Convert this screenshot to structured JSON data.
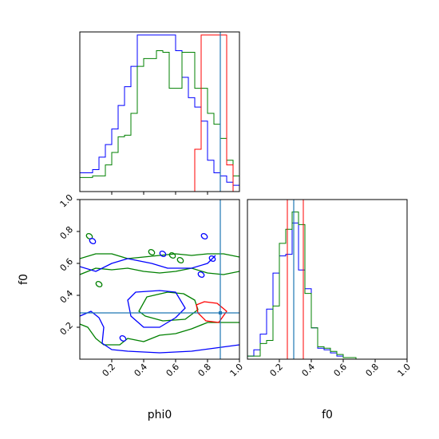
{
  "colors": {
    "blue": "#0000ff",
    "green": "#008000",
    "red": "#ff0000",
    "truth": "#1f77b4"
  },
  "chart_data": [
    {
      "type": "histogram",
      "panel": "phi0-marginal",
      "xlim": [
        0,
        1
      ],
      "bin_edges": [
        0.0,
        0.04,
        0.08,
        0.12,
        0.16,
        0.2,
        0.24,
        0.28,
        0.32,
        0.36,
        0.4,
        0.44,
        0.48,
        0.52,
        0.56,
        0.6,
        0.64,
        0.68,
        0.72,
        0.76,
        0.8,
        0.84,
        0.88,
        0.92,
        0.96,
        1.0
      ],
      "series": [
        {
          "color": "blue",
          "counts": [
            0.12,
            0.12,
            0.14,
            0.22,
            0.3,
            0.4,
            0.55,
            0.67,
            0.8,
            1.0,
            1.0,
            1.0,
            1.0,
            1.0,
            1.0,
            0.9,
            0.73,
            0.6,
            0.54,
            0.45,
            0.2,
            0.12,
            0.1,
            0.06,
            0.04
          ]
        },
        {
          "color": "green",
          "counts": [
            0.0,
            0.0,
            0.0,
            0.0,
            0.0,
            0.0,
            0.0,
            0.0,
            0.0,
            0.0,
            0.0,
            0.0,
            0.0,
            0.0,
            0.0,
            0.0,
            0.0,
            0.0,
            0.0,
            0.0,
            0.0,
            0.0,
            0.0,
            0.0,
            0.0
          ]
        },
        {
          "color": "red",
          "counts": [
            0.0,
            0.0,
            0.0,
            0.0,
            0.0,
            0.0,
            0.0,
            0.0,
            0.0,
            0.0,
            0.0,
            0.0,
            0.0,
            0.0,
            0.0,
            0.0,
            0.0,
            0.0,
            0.0,
            0.0,
            0.0,
            0.0,
            0.0,
            0.0,
            0.0
          ]
        }
      ],
      "green_counts": [
        0.09,
        0.09,
        0.1,
        0.1,
        0.17,
        0.25,
        0.35,
        0.36,
        0.5,
        0.8,
        0.85,
        0.85,
        0.9,
        0.89,
        0.66,
        0.66,
        0.89,
        0.89,
        0.66,
        0.66,
        0.5,
        0.43,
        0.34,
        0.2,
        0.1
      ],
      "red_counts": [
        0.0,
        0.0,
        0.0,
        0.0,
        0.0,
        0.0,
        0.0,
        0.0,
        0.0,
        0.0,
        0.0,
        0.0,
        0.0,
        0.0,
        0.0,
        0.0,
        0.0,
        0.0,
        0.27,
        1.0,
        1.0,
        1.0,
        1.0,
        0.17,
        0.0
      ],
      "truth_x": 0.88
    },
    {
      "type": "contour",
      "panel": "phi0-f0-joint",
      "xlabel": "phi0",
      "ylabel": "f0",
      "xlim": [
        0,
        1
      ],
      "ylim": [
        0,
        1
      ],
      "x_ticks": [
        "0.2",
        "0.4",
        "0.6",
        "0.8",
        "1.0"
      ],
      "y_ticks": [
        "0.2",
        "0.4",
        "0.6",
        "0.8",
        "1.0"
      ],
      "truth": [
        0.88,
        0.29
      ],
      "contours": [
        {
          "color": "green",
          "points": [
            [
              0.0,
              0.63
            ],
            [
              0.1,
              0.66
            ],
            [
              0.2,
              0.66
            ],
            [
              0.3,
              0.63
            ],
            [
              0.4,
              0.64
            ],
            [
              0.5,
              0.65
            ],
            [
              0.6,
              0.66
            ],
            [
              0.7,
              0.65
            ],
            [
              0.8,
              0.66
            ],
            [
              0.9,
              0.66
            ],
            [
              1.0,
              0.64
            ]
          ]
        },
        {
          "color": "green",
          "points": [
            [
              0.0,
              0.53
            ],
            [
              0.1,
              0.57
            ],
            [
              0.2,
              0.56
            ],
            [
              0.3,
              0.57
            ],
            [
              0.4,
              0.55
            ],
            [
              0.5,
              0.54
            ],
            [
              0.6,
              0.55
            ],
            [
              0.7,
              0.57
            ],
            [
              0.8,
              0.54
            ],
            [
              0.9,
              0.53
            ],
            [
              1.0,
              0.55
            ]
          ]
        },
        {
          "color": "green",
          "points": [
            [
              0.0,
              0.22
            ],
            [
              0.05,
              0.2
            ],
            [
              0.1,
              0.13
            ],
            [
              0.15,
              0.09
            ],
            [
              0.25,
              0.09
            ],
            [
              0.3,
              0.13
            ],
            [
              0.4,
              0.11
            ],
            [
              0.5,
              0.15
            ],
            [
              0.6,
              0.16
            ],
            [
              0.7,
              0.19
            ],
            [
              0.8,
              0.23
            ],
            [
              0.9,
              0.23
            ],
            [
              1.0,
              0.23
            ]
          ]
        },
        {
          "color": "green",
          "closed": true,
          "points": [
            [
              0.37,
              0.3
            ],
            [
              0.42,
              0.39
            ],
            [
              0.55,
              0.42
            ],
            [
              0.65,
              0.41
            ],
            [
              0.72,
              0.37
            ],
            [
              0.74,
              0.31
            ],
            [
              0.66,
              0.25
            ],
            [
              0.52,
              0.24
            ],
            [
              0.41,
              0.27
            ]
          ]
        },
        {
          "color": "blue",
          "points": [
            [
              0.0,
              0.58
            ],
            [
              0.1,
              0.55
            ],
            [
              0.2,
              0.6
            ],
            [
              0.3,
              0.63
            ],
            [
              0.35,
              0.62
            ],
            [
              0.45,
              0.6
            ],
            [
              0.55,
              0.57
            ],
            [
              0.65,
              0.57
            ],
            [
              0.7,
              0.57
            ],
            [
              0.8,
              0.6
            ],
            [
              0.85,
              0.65
            ]
          ]
        },
        {
          "color": "blue",
          "closed": true,
          "points": [
            [
              0.3,
              0.37
            ],
            [
              0.35,
              0.42
            ],
            [
              0.5,
              0.43
            ],
            [
              0.6,
              0.42
            ],
            [
              0.66,
              0.32
            ],
            [
              0.6,
              0.26
            ],
            [
              0.5,
              0.2
            ],
            [
              0.4,
              0.2
            ],
            [
              0.32,
              0.27
            ]
          ]
        },
        {
          "color": "blue",
          "points": [
            [
              0.0,
              0.27
            ],
            [
              0.07,
              0.3
            ],
            [
              0.12,
              0.26
            ],
            [
              0.15,
              0.2
            ],
            [
              0.14,
              0.1
            ],
            [
              0.2,
              0.06
            ],
            [
              0.3,
              0.05
            ],
            [
              0.5,
              0.04
            ],
            [
              0.7,
              0.05
            ],
            [
              0.85,
              0.07
            ],
            [
              1.0,
              0.09
            ]
          ]
        },
        {
          "color": "red",
          "closed": true,
          "points": [
            [
              0.73,
              0.34
            ],
            [
              0.78,
              0.36
            ],
            [
              0.86,
              0.35
            ],
            [
              0.92,
              0.3
            ],
            [
              0.87,
              0.23
            ],
            [
              0.79,
              0.24
            ],
            [
              0.74,
              0.29
            ]
          ]
        }
      ]
    },
    {
      "type": "histogram",
      "panel": "f0-marginal",
      "xlabel": "f0",
      "xlim": [
        0,
        1
      ],
      "x_ticks": [
        "0.2",
        "0.4",
        "0.6",
        "0.8",
        "1.0"
      ],
      "bin_edges": [
        0.0,
        0.04,
        0.08,
        0.12,
        0.16,
        0.2,
        0.24,
        0.28,
        0.32,
        0.36,
        0.4,
        0.44,
        0.48,
        0.52,
        0.56,
        0.6,
        0.64,
        0.68,
        0.72,
        0.76,
        0.8,
        0.84,
        0.88,
        0.92,
        0.96,
        1.0
      ],
      "blue_counts": [
        0.02,
        0.06,
        0.16,
        0.32,
        0.55,
        0.66,
        0.67,
        0.87,
        0.57,
        0.45,
        0.2,
        0.07,
        0.06,
        0.04,
        0.02,
        0.01,
        0.01,
        0.0,
        0.0,
        0.0,
        0.0,
        0.0,
        0.0,
        0.0,
        0.0
      ],
      "green_counts": [
        0.02,
        0.02,
        0.1,
        0.12,
        0.34,
        0.74,
        0.83,
        0.94,
        0.86,
        0.42,
        0.2,
        0.08,
        0.07,
        0.05,
        0.03,
        0.01,
        0.01,
        0.0,
        0.0,
        0.0,
        0.0,
        0.0,
        0.0,
        0.0,
        0.0
      ],
      "red_counts": [
        0.0,
        0.0,
        0.0,
        0.0,
        0.0,
        0.0,
        1.0,
        1.0,
        0.0,
        0.0,
        0.0,
        0.0,
        0.0,
        0.0,
        0.0,
        0.0,
        0.0,
        0.0,
        0.0,
        0.0,
        0.0,
        0.0,
        0.0,
        0.0,
        0.0
      ],
      "red_span": [
        0.25,
        0.35
      ],
      "truth_x": 0.29
    }
  ]
}
